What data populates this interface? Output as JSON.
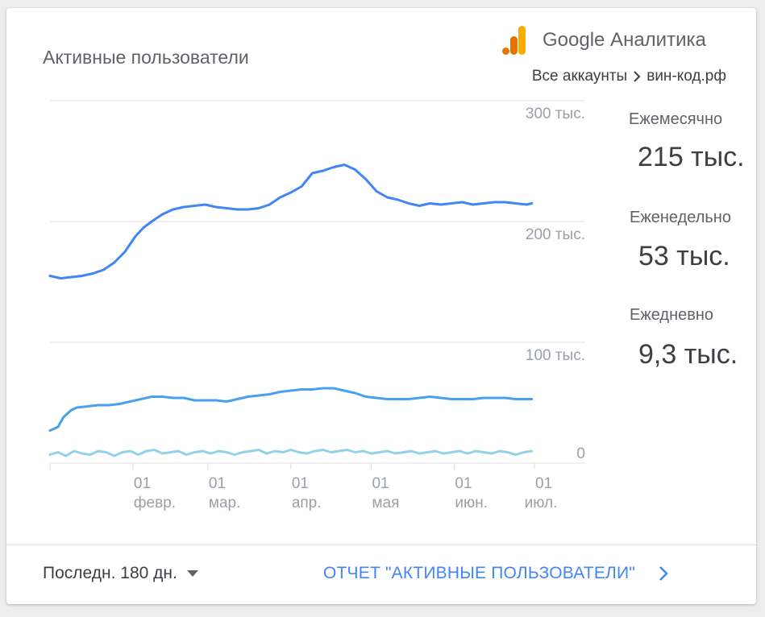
{
  "card": {
    "title": "Активные пользователи",
    "brand": "Google Аналитика",
    "breadcrumb": {
      "accounts": "Все аккаунты",
      "site": "вин-код.рф"
    }
  },
  "metrics": [
    {
      "label": "Ежемесячно",
      "value": "215 тыс."
    },
    {
      "label": "Еженедельно",
      "value": "53 тыс."
    },
    {
      "label": "Ежедневно",
      "value": "9,3 тыс."
    }
  ],
  "footer": {
    "range_label": "Последн. 180 дн.",
    "report_link": "ОТЧЕТ \"АКТИВНЫЕ ПОЛЬЗОВАТЕЛИ\""
  },
  "colors": {
    "monthly": "#4285f4",
    "weekly": "#4a9ff0",
    "daily": "#92d2e8",
    "brand_orange": "#f9ab00",
    "brand_orange_dark": "#e37400"
  },
  "chart_data": {
    "type": "line",
    "ylim": [
      0,
      300
    ],
    "y_ticks": [
      {
        "value": 300,
        "label": "300 тыс."
      },
      {
        "value": 200,
        "label": "200 тыс."
      },
      {
        "value": 100,
        "label": "100 тыс."
      },
      {
        "value": 0,
        "label": "0"
      }
    ],
    "x_ticks": [
      {
        "day": 0,
        "line1": "",
        "line2": ""
      },
      {
        "day": 31,
        "line1": "01",
        "line2": "февр."
      },
      {
        "day": 59,
        "line1": "01",
        "line2": "мар."
      },
      {
        "day": 90,
        "line1": "01",
        "line2": "апр."
      },
      {
        "day": 120,
        "line1": "01",
        "line2": "мая"
      },
      {
        "day": 151,
        "line1": "01",
        "line2": "июн."
      },
      {
        "day": 181,
        "line1": "01",
        "line2": "июл."
      }
    ],
    "xlim": [
      0,
      181
    ],
    "series": [
      {
        "key": "monthly",
        "x": [
          0,
          4,
          8,
          12,
          16,
          20,
          24,
          28,
          32,
          35,
          38,
          42,
          46,
          50,
          54,
          58,
          62,
          66,
          70,
          74,
          78,
          82,
          86,
          90,
          94,
          98,
          102,
          106,
          110,
          114,
          118,
          122,
          126,
          130,
          134,
          138,
          142,
          146,
          150,
          154,
          158,
          162,
          166,
          170,
          174,
          178,
          180
        ],
        "y": [
          155,
          153,
          154,
          155,
          157,
          160,
          166,
          175,
          188,
          195,
          200,
          206,
          210,
          212,
          213,
          214,
          212,
          211,
          210,
          210,
          211,
          214,
          220,
          224,
          229,
          240,
          242,
          245,
          247,
          243,
          235,
          225,
          220,
          218,
          215,
          213,
          215,
          214,
          215,
          216,
          214,
          215,
          216,
          216,
          215,
          214,
          215
        ]
      },
      {
        "key": "weekly",
        "x": [
          0,
          3,
          5,
          8,
          10,
          14,
          18,
          22,
          26,
          30,
          34,
          38,
          42,
          46,
          50,
          54,
          58,
          62,
          66,
          70,
          74,
          78,
          82,
          86,
          90,
          94,
          98,
          102,
          106,
          110,
          114,
          118,
          122,
          126,
          130,
          134,
          138,
          142,
          146,
          150,
          154,
          158,
          162,
          166,
          170,
          174,
          178,
          180
        ],
        "y": [
          27,
          30,
          38,
          44,
          46,
          47,
          48,
          48,
          49,
          51,
          53,
          55,
          55,
          54,
          54,
          52,
          52,
          52,
          51,
          53,
          55,
          56,
          57,
          59,
          60,
          61,
          61,
          62,
          62,
          60,
          58,
          55,
          54,
          53,
          53,
          53,
          54,
          55,
          54,
          53,
          53,
          53,
          54,
          54,
          54,
          53,
          53,
          53
        ]
      },
      {
        "key": "daily",
        "x": [
          0,
          3,
          6,
          9,
          12,
          15,
          18,
          21,
          24,
          27,
          30,
          33,
          36,
          39,
          42,
          45,
          48,
          51,
          54,
          57,
          60,
          63,
          66,
          69,
          72,
          75,
          78,
          81,
          84,
          87,
          90,
          93,
          96,
          99,
          102,
          105,
          108,
          111,
          114,
          117,
          120,
          123,
          126,
          129,
          132,
          135,
          138,
          141,
          144,
          147,
          150,
          153,
          156,
          159,
          162,
          165,
          168,
          171,
          174,
          177,
          180
        ],
        "y": [
          7,
          9,
          6,
          10,
          8,
          7,
          10,
          9,
          6,
          9,
          10,
          7,
          10,
          11,
          8,
          9,
          10,
          7,
          9,
          10,
          8,
          10,
          9,
          7,
          9,
          10,
          11,
          8,
          10,
          9,
          11,
          9,
          8,
          10,
          11,
          9,
          10,
          11,
          9,
          10,
          8,
          9,
          10,
          8,
          9,
          10,
          8,
          9,
          10,
          8,
          9,
          10,
          8,
          10,
          9,
          8,
          10,
          9,
          7,
          9,
          10
        ]
      }
    ]
  }
}
